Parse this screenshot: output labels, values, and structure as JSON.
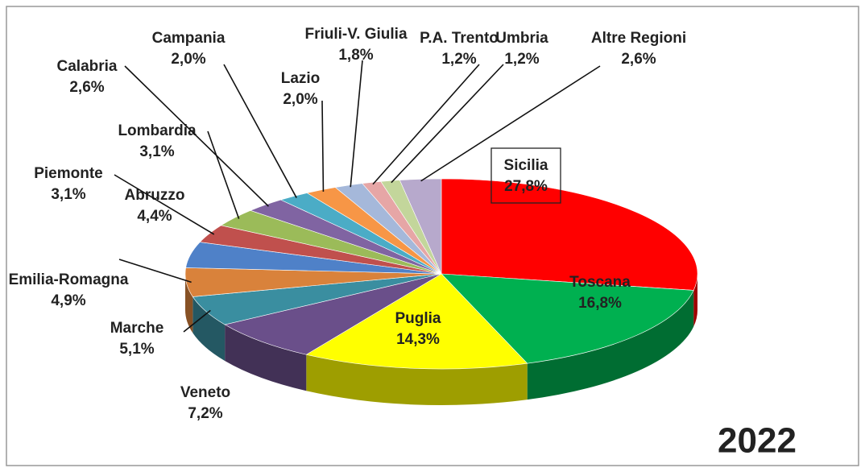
{
  "chart_data": {
    "type": "pie",
    "title": "2022",
    "categories": [
      "Sicilia",
      "Toscana",
      "Puglia",
      "Veneto",
      "Marche",
      "Emilia-Romagna",
      "Abruzzo",
      "Piemonte",
      "Lombardia",
      "Calabria",
      "Campania",
      "Lazio",
      "Friuli-V. Giulia",
      "P.A. Trento",
      "Umbria",
      "Altre Regioni"
    ],
    "values": [
      27.8,
      16.8,
      14.3,
      7.2,
      5.1,
      4.9,
      4.4,
      3.1,
      3.1,
      2.6,
      2.0,
      2.0,
      1.8,
      1.2,
      1.2,
      2.6
    ],
    "value_labels": [
      "27,8%",
      "16,8%",
      "14,3%",
      "7,2%",
      "5,1%",
      "4,9%",
      "4,4%",
      "3,1%",
      "3,1%",
      "2,6%",
      "2,0%",
      "2,0%",
      "1,8%",
      "1,2%",
      "1,2%",
      "2,6%"
    ],
    "colors": [
      "#ff0000",
      "#00b050",
      "#ffff00",
      "#6a4f8a",
      "#3a8ea0",
      "#d9823b",
      "#4f81c8",
      "#c0504d",
      "#9bbb59",
      "#8064a2",
      "#4bacc6",
      "#f79646",
      "#a5b8da",
      "#e6a6a6",
      "#c3d69b",
      "#b7a9cc"
    ]
  }
}
